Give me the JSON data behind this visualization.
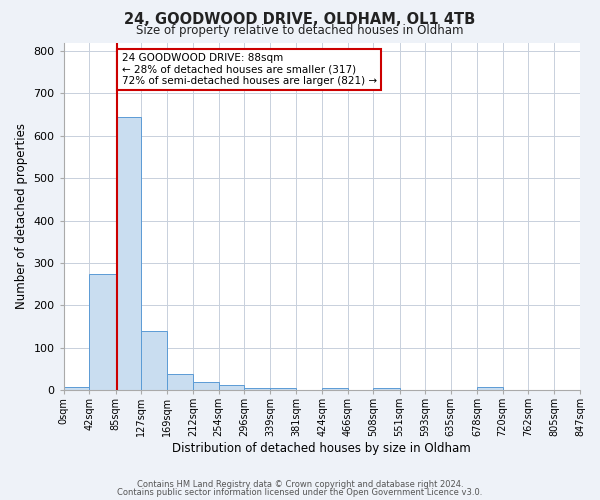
{
  "title_line1": "24, GOODWOOD DRIVE, OLDHAM, OL1 4TB",
  "title_line2": "Size of property relative to detached houses in Oldham",
  "xlabel": "Distribution of detached houses by size in Oldham",
  "ylabel": "Number of detached properties",
  "bin_edges": [
    0,
    42,
    85,
    127,
    169,
    212,
    254,
    296,
    339,
    381,
    424,
    466,
    508,
    551,
    593,
    635,
    678,
    720,
    762,
    805,
    847
  ],
  "bin_counts": [
    7,
    275,
    645,
    140,
    38,
    20,
    12,
    5,
    5,
    1,
    5,
    0,
    5,
    0,
    0,
    0,
    8,
    0,
    0,
    0
  ],
  "bar_color": "#c9ddf0",
  "bar_edge_color": "#5b9bd5",
  "property_size": 88,
  "vline_color": "#cc0000",
  "annotation_line1": "24 GOODWOOD DRIVE: 88sqm",
  "annotation_line2": "← 28% of detached houses are smaller (317)",
  "annotation_line3": "72% of semi-detached houses are larger (821) →",
  "annotation_box_edge_color": "#cc0000",
  "annotation_box_face_color": "white",
  "ylim": [
    0,
    820
  ],
  "yticks": [
    0,
    100,
    200,
    300,
    400,
    500,
    600,
    700,
    800
  ],
  "tick_labels": [
    "0sqm",
    "42sqm",
    "85sqm",
    "127sqm",
    "169sqm",
    "212sqm",
    "254sqm",
    "296sqm",
    "339sqm",
    "381sqm",
    "424sqm",
    "466sqm",
    "508sqm",
    "551sqm",
    "593sqm",
    "635sqm",
    "678sqm",
    "720sqm",
    "762sqm",
    "805sqm",
    "847sqm"
  ],
  "footer_line1": "Contains HM Land Registry data © Crown copyright and database right 2024.",
  "footer_line2": "Contains public sector information licensed under the Open Government Licence v3.0.",
  "background_color": "#eef2f8",
  "plot_bg_color": "#ffffff",
  "grid_color": "#c8d0dc",
  "figwidth": 6.0,
  "figheight": 5.0,
  "dpi": 100
}
